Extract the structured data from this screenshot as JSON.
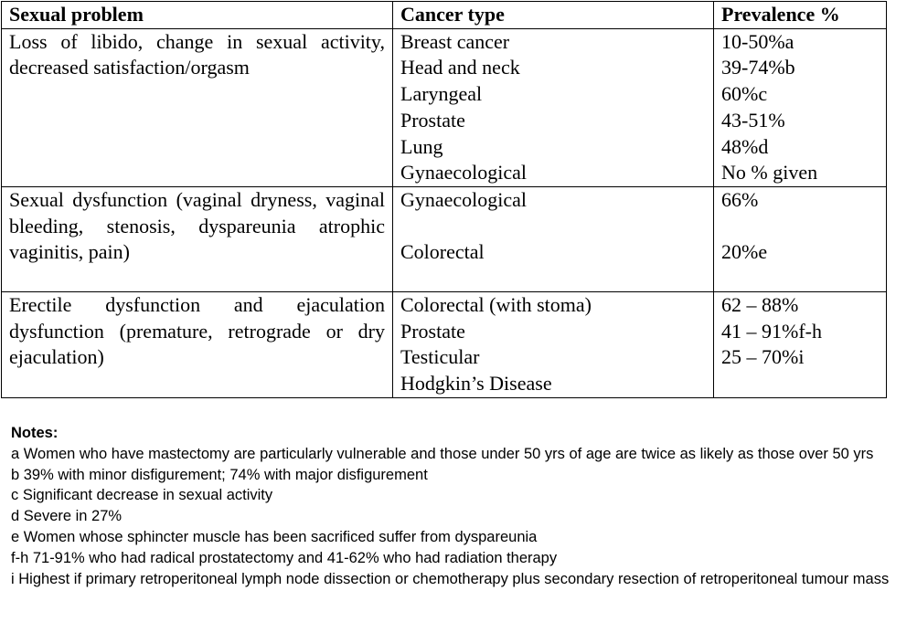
{
  "table": {
    "headers": [
      "Sexual problem",
      "Cancer type",
      "Prevalence %"
    ],
    "rows": [
      {
        "problem": "Loss of libido, change in sexual activity, decreased satisfaction/orgasm",
        "cancers": [
          "Breast cancer",
          "Head and neck",
          "Laryngeal",
          "Prostate",
          "Lung",
          "Gynaecological"
        ],
        "prevalence": [
          "10-50%a",
          "39-74%b",
          "60%c",
          "43-51%",
          "48%d",
          "No % given"
        ]
      },
      {
        "problem": "Sexual dysfunction (vaginal dryness, vaginal bleeding, stenosis, dyspareunia atrophic vaginitis, pain)",
        "cancers": [
          "Gynaecological",
          "Colorectal"
        ],
        "prevalence": [
          "66%",
          "20%e"
        ]
      },
      {
        "problem": "Erectile dysfunction and ejaculation dysfunction (premature, retrograde or dry ejaculation)",
        "cancers": [
          "Colorectal (with stoma)",
          "Prostate",
          "Testicular",
          "Hodgkin’s Disease"
        ],
        "prevalence": [
          "62 – 88%",
          "41 – 91%f-h",
          "25 – 70%i"
        ]
      }
    ]
  },
  "notes": {
    "title": "Notes:",
    "items": [
      "a Women who have mastectomy are particularly vulnerable and those under 50 yrs of age are twice as likely as those over 50 yrs",
      "b 39% with minor disfigurement; 74% with major disfigurement",
      "c Significant decrease in sexual activity",
      "d Severe in 27%",
      "e Women whose sphincter muscle has been sacrificed suffer from dyspareunia",
      "f-h 71-91% who had radical prostatectomy and 41-62% who had radiation therapy",
      "i Highest if primary retroperitoneal lymph node dissection or chemotherapy plus secondary resection of retroperitoneal tumour mass"
    ]
  }
}
